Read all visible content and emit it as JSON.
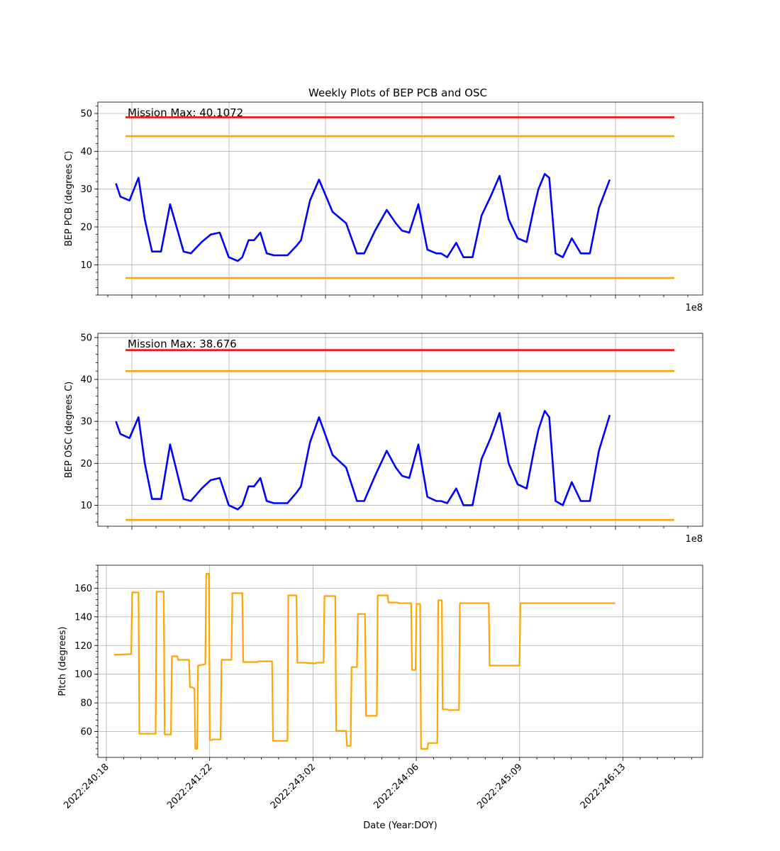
{
  "figure": {
    "title": "Weekly Plots of BEP PCB and OSC"
  },
  "chart_data": [
    {
      "type": "line",
      "title": "Weekly Plots of BEP PCB and OSC",
      "ylabel": "BEP PCB (degrees C)",
      "xlabel": "",
      "offset_text": "1e8",
      "annotation": "Mission Max: 40.1072",
      "ylim": [
        2,
        53
      ],
      "yticks": [
        10,
        20,
        30,
        40,
        50
      ],
      "grid": true,
      "limit_lines": [
        {
          "name": "red",
          "value": 49,
          "color": "#ff0000"
        },
        {
          "name": "yellow-high",
          "value": 44,
          "color": "#ffa500"
        },
        {
          "name": "yellow-low",
          "value": 6.5,
          "color": "#ffa500"
        }
      ],
      "series": [
        {
          "color": "#0000ff",
          "x": [
            240.95,
            241.0,
            241.1,
            241.2,
            241.27,
            241.35,
            241.45,
            241.55,
            241.7,
            241.78,
            241.9,
            242.0,
            242.1,
            242.2,
            242.3,
            242.35,
            242.42,
            242.48,
            242.55,
            242.62,
            242.7,
            242.75,
            242.85,
            242.95,
            243.0,
            243.1,
            243.2,
            243.35,
            243.5,
            243.62,
            243.7,
            243.82,
            243.95,
            244.05,
            244.12,
            244.2,
            244.3,
            244.4,
            244.5,
            244.55,
            244.62,
            244.72,
            244.8,
            244.9,
            245.0,
            245.1,
            245.2,
            245.3,
            245.4,
            245.5,
            245.58,
            245.63,
            245.7,
            245.75,
            245.82,
            245.9,
            246.0,
            246.1,
            246.2,
            246.3,
            246.42
          ],
          "y": [
            31.5,
            28,
            27,
            33,
            22,
            13.5,
            13.5,
            26,
            13.5,
            13,
            16,
            18,
            18.5,
            12,
            11,
            12,
            16.5,
            16.5,
            18.5,
            13,
            12.5,
            12.5,
            12.5,
            15,
            16.5,
            27,
            32.5,
            24,
            21,
            13,
            13,
            19,
            24.5,
            21,
            19,
            18.5,
            26,
            14,
            13,
            13,
            12,
            15.8,
            12,
            12,
            23,
            28,
            33.5,
            22,
            17,
            16,
            25,
            30,
            34,
            33,
            13,
            12,
            17,
            13,
            13,
            25,
            32.5
          ]
        }
      ]
    },
    {
      "type": "line",
      "ylabel": "BEP OSC (degrees C)",
      "xlabel": "",
      "offset_text": "1e8",
      "annotation": "Mission Max: 38.676",
      "ylim": [
        5,
        51
      ],
      "yticks": [
        10,
        20,
        30,
        40,
        50
      ],
      "grid": true,
      "limit_lines": [
        {
          "name": "red",
          "value": 47,
          "color": "#ff0000"
        },
        {
          "name": "yellow-high",
          "value": 42,
          "color": "#ffa500"
        },
        {
          "name": "yellow-low",
          "value": 6.5,
          "color": "#ffa500"
        }
      ],
      "series": [
        {
          "color": "#0000ff",
          "x": [
            240.95,
            241.0,
            241.1,
            241.2,
            241.27,
            241.35,
            241.45,
            241.55,
            241.7,
            241.78,
            241.9,
            242.0,
            242.1,
            242.2,
            242.3,
            242.35,
            242.42,
            242.48,
            242.55,
            242.62,
            242.7,
            242.75,
            242.85,
            242.95,
            243.0,
            243.1,
            243.2,
            243.35,
            243.5,
            243.62,
            243.7,
            243.82,
            243.95,
            244.05,
            244.12,
            244.2,
            244.3,
            244.4,
            244.5,
            244.55,
            244.62,
            244.72,
            244.8,
            244.9,
            245.0,
            245.1,
            245.2,
            245.3,
            245.4,
            245.5,
            245.58,
            245.63,
            245.7,
            245.75,
            245.82,
            245.9,
            246.0,
            246.1,
            246.2,
            246.3,
            246.42
          ],
          "y": [
            30,
            27,
            26,
            31,
            20,
            11.5,
            11.5,
            24.5,
            11.5,
            11,
            14,
            16,
            16.5,
            10,
            9,
            10,
            14.5,
            14.5,
            16.5,
            11,
            10.5,
            10.5,
            10.5,
            13,
            14.5,
            25,
            31,
            22,
            19,
            11,
            11,
            17,
            23,
            19,
            17,
            16.5,
            24.5,
            12,
            11,
            11,
            10.5,
            14,
            10,
            10,
            21,
            26,
            32,
            20,
            15,
            14,
            23,
            28,
            32.5,
            31,
            11,
            10,
            15.5,
            11,
            11,
            23,
            31.5
          ]
        }
      ]
    },
    {
      "type": "line",
      "ylabel": "Pitch (degrees)",
      "xlabel": "Date (Year:DOY)",
      "xlim": [
        240.75,
        247.45
      ],
      "xticks": [
        "2022:240:18",
        "2022:241:22",
        "2022:243:02",
        "2022:244:06",
        "2022:245:09",
        "2022:246:13"
      ],
      "ylim": [
        42,
        176
      ],
      "yticks": [
        60,
        80,
        100,
        120,
        140,
        160
      ],
      "grid": true,
      "series": [
        {
          "color": "#ffa500",
          "x": [
            240.93,
            241.12,
            241.13,
            241.2,
            241.21,
            241.39,
            241.4,
            241.48,
            241.49,
            241.56,
            241.57,
            241.63,
            241.64,
            241.76,
            241.77,
            241.79,
            241.82,
            241.83,
            241.85,
            241.86,
            241.94,
            241.95,
            241.98,
            241.99,
            242.01,
            242.02,
            242.11,
            242.12,
            242.23,
            242.24,
            242.35,
            242.36,
            242.52,
            242.53,
            242.68,
            242.69,
            242.85,
            242.86,
            242.95,
            242.96,
            243.03,
            243.04,
            243.16,
            243.17,
            243.25,
            243.26,
            243.38,
            243.39,
            243.5,
            243.51,
            243.55,
            243.56,
            243.62,
            243.63,
            243.71,
            243.72,
            243.84,
            243.85,
            243.96,
            243.97,
            244.07,
            244.08,
            244.22,
            244.23,
            244.27,
            244.28,
            244.32,
            244.33,
            244.4,
            244.41,
            244.51,
            244.52,
            244.56,
            244.57,
            244.62,
            244.63,
            244.75,
            244.76,
            245.08,
            245.09,
            245.42,
            245.43,
            245.45,
            245.46,
            245.55,
            245.56,
            245.57,
            245.58,
            245.61,
            245.62,
            245.68,
            245.69,
            245.7,
            245.71,
            245.85,
            245.86,
            245.97,
            245.98,
            246.22,
            246.23,
            246.48
          ],
          "y": [
            113.5,
            114,
            157,
            157,
            58.5,
            58.5,
            157.5,
            157.5,
            58,
            58,
            112.5,
            112.5,
            110,
            110,
            91,
            91,
            90,
            48,
            48,
            106,
            107,
            170,
            170,
            54,
            54,
            54.5,
            54.5,
            110,
            110,
            156.5,
            156.5,
            108.5,
            108.5,
            109,
            109,
            53.5,
            53.5,
            155,
            155,
            108,
            108,
            108,
            107.5,
            108,
            108,
            154.5,
            154.5,
            60.5,
            60.5,
            50,
            50,
            105,
            105,
            142,
            142,
            71,
            71,
            155,
            155,
            150,
            150,
            149.5,
            149.5,
            103,
            103,
            149,
            149,
            48,
            48,
            52,
            52,
            151.5,
            151.5,
            75.5,
            75.5,
            75,
            75,
            149.5,
            149.5,
            106,
            106,
            149.5,
            149.5,
            149.5,
            149.5,
            149.5,
            149.5,
            149.5,
            149.5,
            149.5,
            149.5,
            149.5,
            149.5,
            149.5,
            149.5,
            149.5,
            149.5,
            149.5,
            149.5,
            149.5,
            149.5
          ]
        }
      ]
    }
  ]
}
